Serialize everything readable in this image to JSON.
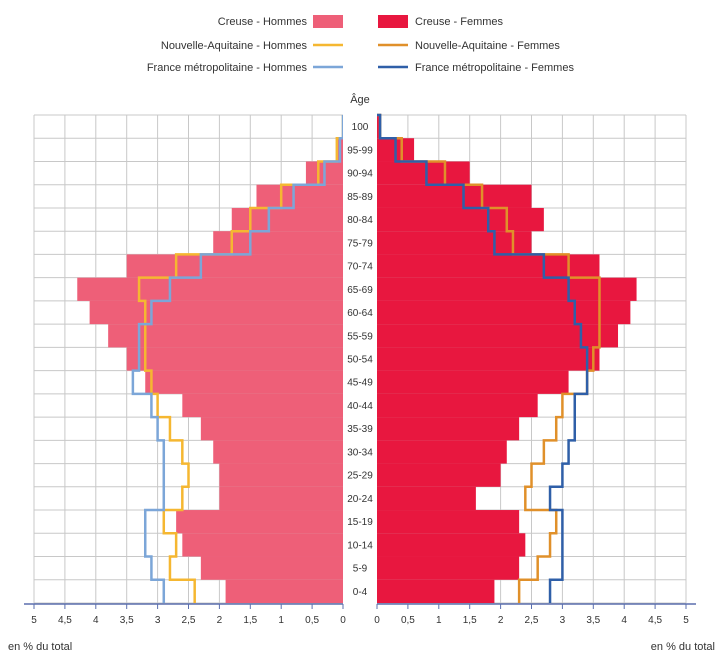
{
  "chart_data": {
    "type": "population-pyramid",
    "age_title": "Âge",
    "unit_label_left": "en % du total",
    "unit_label_right": "en % du total",
    "xlim": [
      0,
      5
    ],
    "x_ticks_left": [
      "5",
      "4,5",
      "4",
      "3,5",
      "3",
      "2,5",
      "2",
      "1,5",
      "1",
      "0,5",
      "0"
    ],
    "x_ticks_right": [
      "0",
      "0,5",
      "1",
      "1,5",
      "2",
      "2,5",
      "3",
      "3,5",
      "4",
      "4,5",
      "5"
    ],
    "age_groups": [
      "0-4",
      "5-9",
      "10-14",
      "15-19",
      "20-24",
      "25-29",
      "30-34",
      "35-39",
      "40-44",
      "45-49",
      "50-54",
      "55-59",
      "60-64",
      "65-69",
      "70-74",
      "75-79",
      "80-84",
      "85-89",
      "90-94",
      "95-99",
      "100"
    ],
    "legend": {
      "creuse_hommes": "Creuse - Hommes",
      "creuse_femmes": "Creuse - Femmes",
      "na_hommes": "Nouvelle-Aquitaine - Hommes",
      "na_femmes": "Nouvelle-Aquitaine - Femmes",
      "fr_hommes": "France métropolitaine - Hommes",
      "fr_femmes": "France métropolitaine - Femmes"
    },
    "colors": {
      "creuse_hommes": "#ee5f78",
      "creuse_femmes": "#e8173f",
      "nouvelle_aquitaine": "#f5b731",
      "na_femmes": "#e0902a",
      "france_hommes": "#7ca6d8",
      "france_femmes": "#2f5fa8",
      "grid": "#c8c8c8",
      "axis": "#5b6fae"
    },
    "series": {
      "creuse_hommes": [
        1.9,
        2.3,
        2.6,
        2.7,
        2.0,
        2.0,
        2.1,
        2.3,
        2.6,
        3.2,
        3.5,
        3.8,
        4.1,
        4.3,
        3.5,
        2.1,
        1.8,
        1.4,
        0.6,
        0.1,
        0.0
      ],
      "creuse_femmes": [
        1.9,
        2.3,
        2.4,
        2.3,
        1.6,
        2.0,
        2.1,
        2.3,
        2.6,
        3.1,
        3.6,
        3.9,
        4.1,
        4.2,
        3.6,
        2.5,
        2.7,
        2.5,
        1.5,
        0.6,
        0.05
      ],
      "na_hommes": [
        2.4,
        2.8,
        2.7,
        2.9,
        2.6,
        2.5,
        2.6,
        2.8,
        3.0,
        3.1,
        3.2,
        3.2,
        3.2,
        3.3,
        2.7,
        1.8,
        1.5,
        1.0,
        0.4,
        0.1,
        0.0
      ],
      "na_femmes": [
        2.3,
        2.6,
        2.8,
        2.9,
        2.4,
        2.5,
        2.7,
        2.9,
        3.0,
        3.4,
        3.5,
        3.6,
        3.6,
        3.6,
        3.1,
        2.2,
        2.1,
        1.7,
        1.1,
        0.4,
        0.05
      ],
      "fr_hommes": [
        2.9,
        3.1,
        3.2,
        3.2,
        2.9,
        2.9,
        2.9,
        3.0,
        3.1,
        3.4,
        3.3,
        3.3,
        3.1,
        2.8,
        2.3,
        1.5,
        1.2,
        0.8,
        0.3,
        0.05,
        0.0
      ],
      "fr_femmes": [
        2.8,
        3.0,
        3.0,
        3.0,
        2.8,
        3.0,
        3.1,
        3.2,
        3.2,
        3.4,
        3.4,
        3.3,
        3.2,
        3.1,
        2.7,
        1.9,
        1.8,
        1.4,
        0.8,
        0.3,
        0.05
      ]
    }
  }
}
